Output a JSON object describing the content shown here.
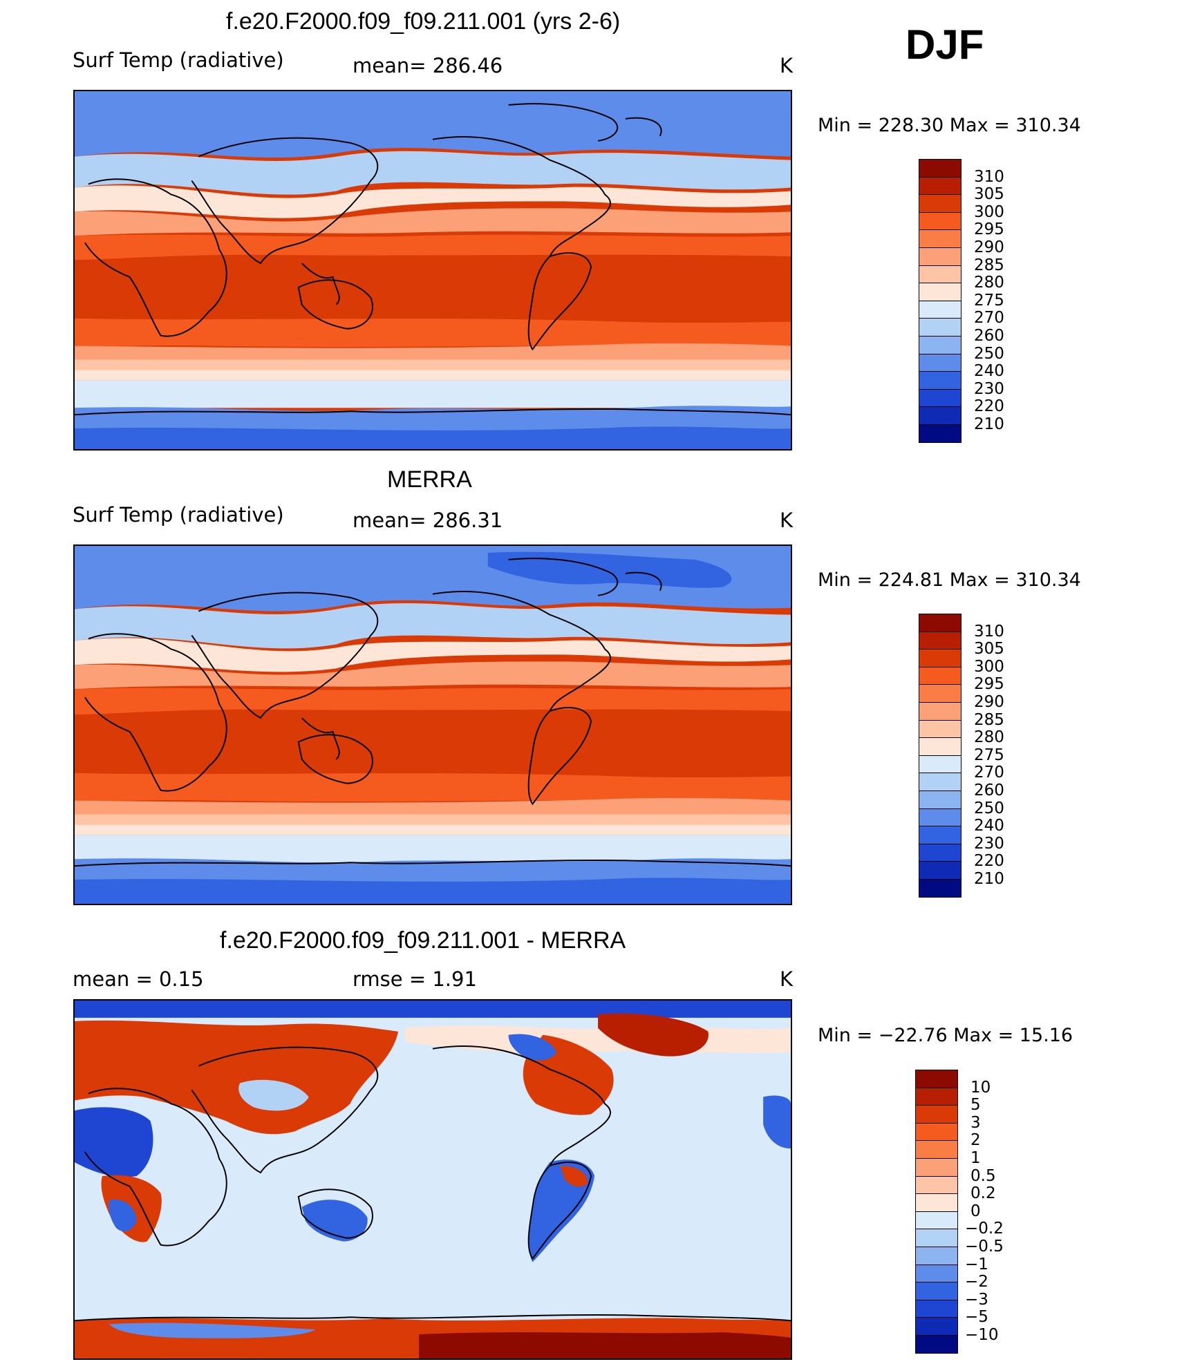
{
  "season": "DJF",
  "panels": [
    {
      "id": "model",
      "title": "f.e20.F2000.f09_f09.211.001 (yrs 2-6)",
      "left_label": "Surf Temp (radiative)",
      "stat_text": "mean=  286.46",
      "units": "K",
      "minmax": "Min  =  228.30  Max  =  310.34",
      "colorbar": {
        "labels": [
          "310",
          "305",
          "300",
          "295",
          "290",
          "285",
          "280",
          "275",
          "270",
          "260",
          "250",
          "240",
          "230",
          "220",
          "210"
        ],
        "colors": [
          "#8c0a00",
          "#b81e00",
          "#d93a06",
          "#f55a1e",
          "#fa7d46",
          "#fca078",
          "#fdc4a6",
          "#fde6d8",
          "#d9eafa",
          "#b2d2f5",
          "#8cb4f0",
          "#5e8cea",
          "#3264e2",
          "#1e46d2",
          "#0f2ab4",
          "#000a82"
        ]
      }
    },
    {
      "id": "obs",
      "title": "MERRA",
      "left_label": "Surf Temp (radiative)",
      "stat_text": "mean=  286.31",
      "units": "K",
      "minmax": "Min  =  224.81  Max  =  310.34",
      "colorbar": {
        "labels": [
          "310",
          "305",
          "300",
          "295",
          "290",
          "285",
          "280",
          "275",
          "270",
          "260",
          "250",
          "240",
          "230",
          "220",
          "210"
        ],
        "colors": [
          "#8c0a00",
          "#b81e00",
          "#d93a06",
          "#f55a1e",
          "#fa7d46",
          "#fca078",
          "#fdc4a6",
          "#fde6d8",
          "#d9eafa",
          "#b2d2f5",
          "#8cb4f0",
          "#5e8cea",
          "#3264e2",
          "#1e46d2",
          "#0f2ab4",
          "#000a82"
        ]
      }
    },
    {
      "id": "diff",
      "title": "f.e20.F2000.f09_f09.211.001 - MERRA",
      "left_label": "mean  =     0.15",
      "stat_text": "rmse  =     1.91",
      "units": "K",
      "minmax": "Min  =  −22.76  Max  =    15.16",
      "colorbar": {
        "labels": [
          "10",
          "5",
          "3",
          "2",
          "1",
          "0.5",
          "0.2",
          "0",
          "−0.2",
          "−0.5",
          "−1",
          "−2",
          "−3",
          "−5",
          "−10"
        ],
        "colors": [
          "#8c0a00",
          "#b81e00",
          "#d93a06",
          "#f55a1e",
          "#fa7d46",
          "#fca078",
          "#fdc4a6",
          "#fde6d8",
          "#d9eafa",
          "#b2d2f5",
          "#8cb4f0",
          "#5e8cea",
          "#3264e2",
          "#1e46d2",
          "#0f2ab4",
          "#000a82"
        ]
      }
    }
  ]
}
